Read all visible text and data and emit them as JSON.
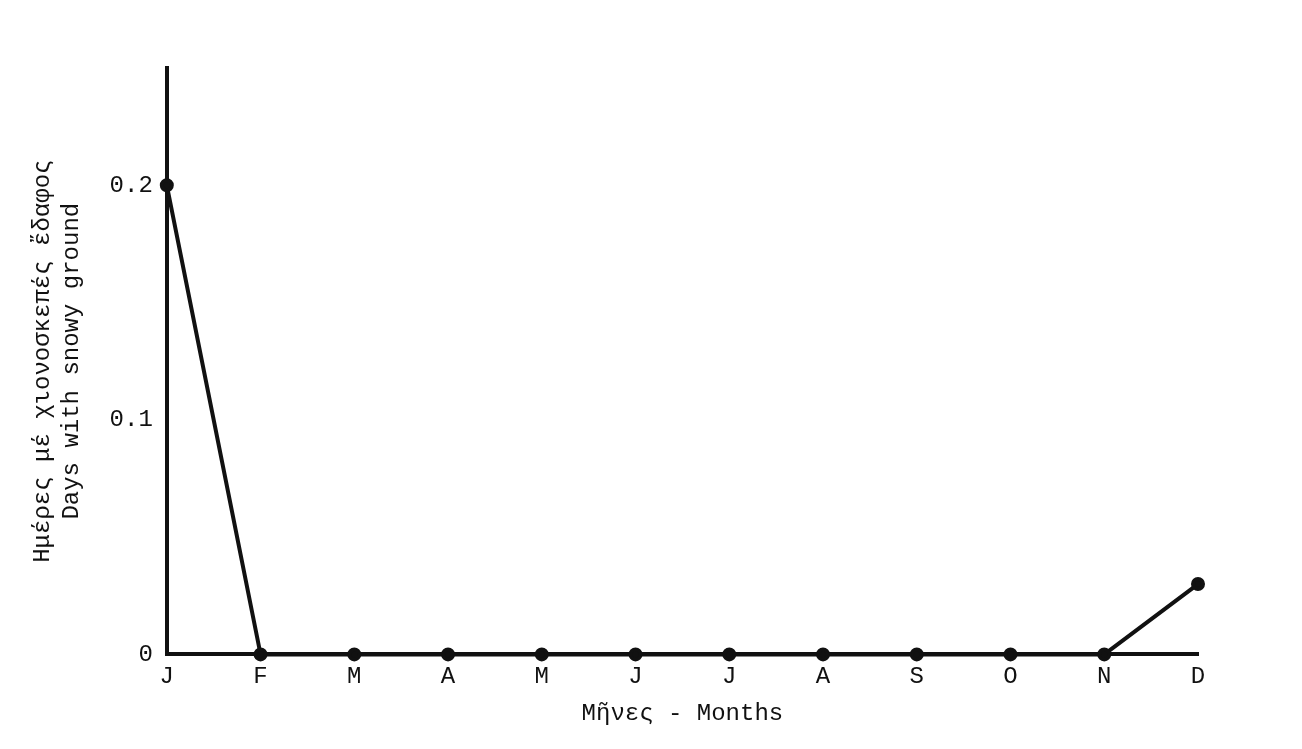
{
  "chart_data": {
    "type": "line",
    "xlabel": "Μῆνες - Months",
    "ylabel": "Ημέρες μέ χιονοσκεπές ἔδαφος\nDays with snowy ground",
    "categories": [
      "J",
      "F",
      "M",
      "A",
      "M",
      "J",
      "J",
      "A",
      "S",
      "O",
      "N",
      "D"
    ],
    "series": [
      {
        "color": "#111111",
        "values": [
          0.2,
          0,
          0,
          0,
          0,
          0,
          0,
          0,
          0,
          0,
          0,
          0.03
        ]
      }
    ],
    "ylim": [
      0,
      0.25
    ],
    "yticks": [
      0,
      0.1,
      0.2
    ],
    "grid": false,
    "legend": false,
    "marker": "circle",
    "line_style": "solid"
  }
}
